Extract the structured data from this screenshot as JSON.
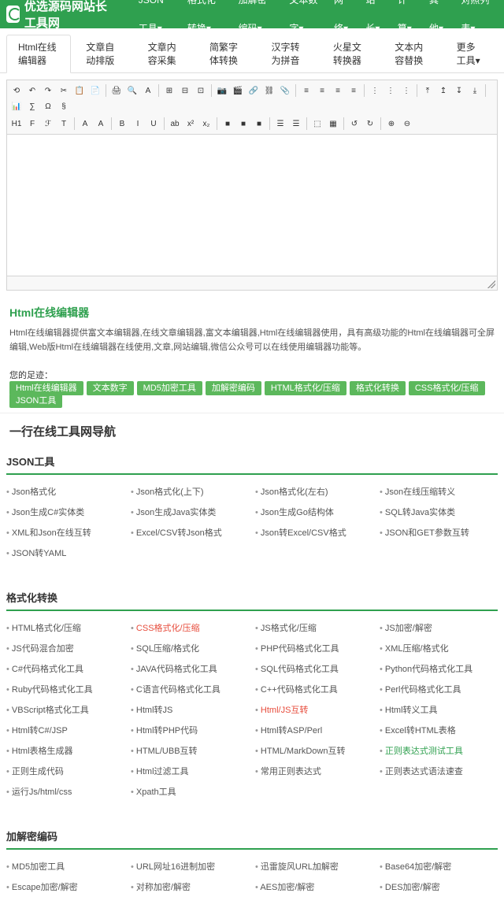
{
  "site_title": "优选源码网站长工具网",
  "main_nav": [
    "JSON工具▾",
    "格式化转换▾",
    "加解密编码▾",
    "文本数字▾",
    "网络▾",
    "站长▾",
    "计算▾",
    "其他▾",
    "对照列表▾"
  ],
  "tabs": [
    "Html在线编辑器",
    "文章自动排版",
    "文章内容采集",
    "简繁字体转换",
    "汉字转为拼音",
    "火星文转换器",
    "文本内容替换",
    "更多工具▾"
  ],
  "active_tab": 0,
  "tb_row1": [
    "⟲",
    "↶",
    "↷",
    "✂",
    "📋",
    "📄",
    "|",
    "🖨",
    "🔍",
    "A",
    "|",
    "⊞",
    "⊟",
    "⊡",
    "|",
    "📷",
    "🎬",
    "🔗",
    "⛓",
    "📎",
    "|",
    "≡",
    "≡",
    "≡",
    "≡",
    "|",
    "⋮",
    "⋮",
    "⋮",
    "|",
    "⤒",
    "↥",
    "↧",
    "⤓",
    "|",
    "📊",
    "∑",
    "Ω",
    "§"
  ],
  "tb_row2": [
    "H1",
    "F",
    "ℱ",
    "T",
    "|",
    "A",
    "A",
    "|",
    "B",
    "I",
    "U",
    "|",
    "ab",
    "x²",
    "x₂",
    "|",
    "■",
    "■",
    "■",
    "|",
    "☰",
    "☰",
    "|",
    "⬚",
    "▦",
    "|",
    "↺",
    "↻",
    "|",
    "⊕",
    "⊖"
  ],
  "section_title": "Html在线编辑器",
  "description": "Html在线编辑器提供富文本编辑器,在线文章编辑器,富文本编辑器,Html在线编辑器使用，具有高级功能的Html在线编辑器可全屏编辑,Web版Html在线编辑器在线使用,文章,网站编辑,微信公众号可以在线使用编辑器功能等。",
  "footprint_label": "您的足迹：",
  "footprint_tags": [
    "Html在线编辑器",
    "文本数字",
    "MD5加密工具",
    "加解密编码",
    "HTML格式化/压缩",
    "格式化转换",
    "CSS格式化/压缩",
    "JSON工具"
  ],
  "nav_heading": "一行在线工具网导航",
  "categories": [
    {
      "name": "JSON工具",
      "items": [
        {
          "t": "Json格式化"
        },
        {
          "t": "Json格式化(上下)"
        },
        {
          "t": "Json格式化(左右)"
        },
        {
          "t": "Json在线压缩转义"
        },
        {
          "t": "Json生成C#实体类"
        },
        {
          "t": "Json生成Java实体类"
        },
        {
          "t": "Json生成Go结构体"
        },
        {
          "t": "SQL转Java实体类"
        },
        {
          "t": "XML和Json在线互转"
        },
        {
          "t": "Excel/CSV转Json格式"
        },
        {
          "t": "Json转Excel/CSV格式"
        },
        {
          "t": "JSON和GET参数互转"
        },
        {
          "t": "JSON转YAML"
        }
      ]
    },
    {
      "name": "格式化转换",
      "items": [
        {
          "t": "HTML格式化/压缩"
        },
        {
          "t": "CSS格式化/压缩",
          "c": "red"
        },
        {
          "t": "JS格式化/压缩"
        },
        {
          "t": "JS加密/解密"
        },
        {
          "t": "JS代码混合加密"
        },
        {
          "t": "SQL压缩/格式化"
        },
        {
          "t": "PHP代码格式化工具"
        },
        {
          "t": "XML压缩/格式化"
        },
        {
          "t": "C#代码格式化工具"
        },
        {
          "t": "JAVA代码格式化工具"
        },
        {
          "t": "SQL代码格式化工具"
        },
        {
          "t": "Python代码格式化工具"
        },
        {
          "t": "Ruby代码格式化工具"
        },
        {
          "t": "C语言代码格式化工具"
        },
        {
          "t": "C++代码格式化工具"
        },
        {
          "t": "Perl代码格式化工具"
        },
        {
          "t": "VBScript格式化工具"
        },
        {
          "t": "Html转JS"
        },
        {
          "t": "Html/JS互转",
          "c": "red"
        },
        {
          "t": "Html转义工具"
        },
        {
          "t": "Html转C#/JSP"
        },
        {
          "t": "Html转PHP代码"
        },
        {
          "t": "Html转ASP/Perl"
        },
        {
          "t": "Excel转HTML表格"
        },
        {
          "t": "Html表格生成器"
        },
        {
          "t": "HTML/UBB互转"
        },
        {
          "t": "HTML/MarkDown互转"
        },
        {
          "t": "正则表达式测试工具",
          "c": "green"
        },
        {
          "t": "正则生成代码"
        },
        {
          "t": "Html过滤工具"
        },
        {
          "t": "常用正则表达式"
        },
        {
          "t": "正则表达式语法速查"
        },
        {
          "t": "运行Js/html/css"
        },
        {
          "t": "Xpath工具"
        }
      ]
    },
    {
      "name": "加解密编码",
      "items": [
        {
          "t": "MD5加密工具"
        },
        {
          "t": "URL网址16进制加密"
        },
        {
          "t": "迅雷旋风URL加解密"
        },
        {
          "t": "Base64加密/解密"
        },
        {
          "t": "Escape加密/解密"
        },
        {
          "t": "对称加密/解密"
        },
        {
          "t": "AES加密/解密"
        },
        {
          "t": "DES加密/解密"
        }
      ]
    }
  ]
}
